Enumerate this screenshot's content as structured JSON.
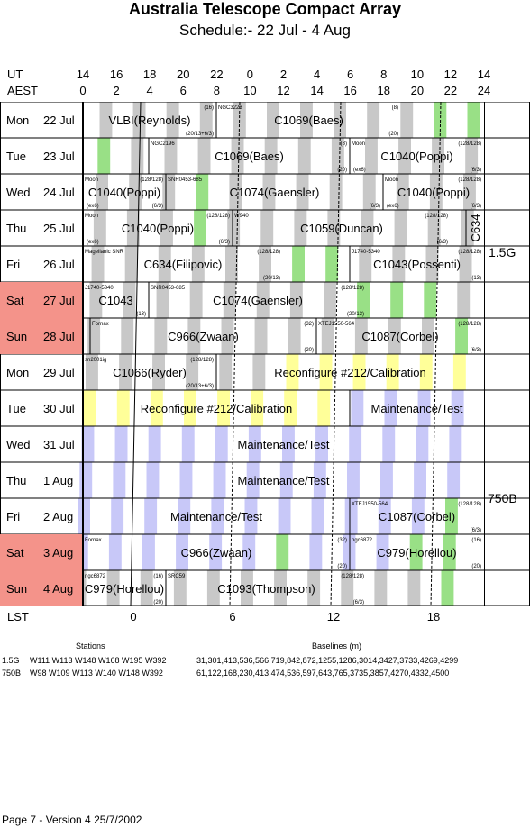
{
  "title": "Australia Telescope Compact Array",
  "subtitle": "Schedule:- 22 Jul - 4  Aug",
  "ut_label": "UT",
  "aest_label": "AEST",
  "lst_label": "LST",
  "ut_ticks": [
    "14",
    "16",
    "18",
    "20",
    "22",
    "0",
    "2",
    "4",
    "6",
    "8",
    "10",
    "12",
    "14"
  ],
  "aest_ticks": [
    "0",
    "2",
    "4",
    "6",
    "8",
    "10",
    "12",
    "14",
    "16",
    "18",
    "20",
    "22",
    "24"
  ],
  "lst_ticks": [
    "0",
    "6",
    "12",
    "18"
  ],
  "days": [
    {
      "name": "Mon",
      "date": "22 Jul",
      "weekend": false
    },
    {
      "name": "Tue",
      "date": "23 Jul",
      "weekend": false
    },
    {
      "name": "Wed",
      "date": "24 Jul",
      "weekend": false
    },
    {
      "name": "Thu",
      "date": "25 Jul",
      "weekend": false
    },
    {
      "name": "Fri",
      "date": "26 Jul",
      "weekend": false
    },
    {
      "name": "Sat",
      "date": "27 Jul",
      "weekend": true
    },
    {
      "name": "Sun",
      "date": "28 Jul",
      "weekend": true
    },
    {
      "name": "Mon",
      "date": "29 Jul",
      "weekend": false
    },
    {
      "name": "Tue",
      "date": "30 Jul",
      "weekend": false
    },
    {
      "name": "Wed",
      "date": "31 Jul",
      "weekend": false
    },
    {
      "name": "Thu",
      "date": "1  Aug",
      "weekend": false
    },
    {
      "name": "Fri",
      "date": "2  Aug",
      "weekend": false
    },
    {
      "name": "Sat",
      "date": "3  Aug",
      "weekend": true
    },
    {
      "name": "Sun",
      "date": "4  Aug",
      "weekend": true
    }
  ],
  "configs": [
    {
      "label": "1.5G"
    },
    {
      "label": "750B"
    }
  ],
  "colors": {
    "weekend": "#f4938a",
    "grey": "#c8c8c8",
    "green": "#99e086",
    "yellow": "#ffff99",
    "lavender": "#c8c8f8"
  },
  "blocks": [
    {
      "row": 0,
      "start": 92,
      "end": 240,
      "label": "VLBI(Reynolds)",
      "top": "",
      "tr": "(16)",
      "br": "(20/13+6/3)"
    },
    {
      "row": 0,
      "start": 240,
      "end": 445,
      "label": "C1069(Baes)",
      "top": "NGC3223",
      "tr": "(8)",
      "br": "(20)"
    },
    {
      "row": 1,
      "start": 165,
      "end": 388,
      "label": "C1069(Baes)",
      "top": "NGC2196",
      "tr": "(8)",
      "br": "(20)"
    },
    {
      "row": 1,
      "start": 388,
      "end": 537,
      "label": "C1040(Poppi)",
      "top": "Moon",
      "tr": "(128/128)",
      "br": "(6/3)",
      "bl": "(ex6)"
    },
    {
      "row": 2,
      "start": 92,
      "end": 184,
      "label": "C1040(Poppi)",
      "top": "Moon",
      "tr": "(128/128)",
      "br": "(6/3)",
      "bl": "(ex6)"
    },
    {
      "row": 2,
      "start": 184,
      "end": 425,
      "label": "C1074(Gaensler)",
      "top": "SNR0453-685",
      "tr": "",
      "br": "(6/3)"
    },
    {
      "row": 2,
      "start": 425,
      "end": 537,
      "label": "C1040(Poppi)",
      "top": "Moon",
      "tr": "(128/128)",
      "br": "(6/3)",
      "bl": "(ex6)"
    },
    {
      "row": 3,
      "start": 92,
      "end": 258,
      "label": "C1040(Poppi)",
      "top": "Moon",
      "tr": "(128/128)",
      "br": "(6/3)",
      "bl": "(ex6)"
    },
    {
      "row": 3,
      "start": 258,
      "end": 500,
      "label": "C1059(Duncan)",
      "top": "W940",
      "tr": "(128/128)",
      "br": "(6/3)"
    },
    {
      "row": 3,
      "start": 517,
      "end": 537,
      "label": "C634",
      "top": "",
      "tr": "",
      "br": "",
      "vertical": true
    },
    {
      "row": 4,
      "start": 92,
      "end": 314,
      "label": "C634(Filipovic)",
      "top": "Magellanic SNR",
      "tr": "(128/128)",
      "br": "(20/13)"
    },
    {
      "row": 4,
      "start": 388,
      "end": 537,
      "label": "C1043(Possenti)",
      "top": "J1740-5340",
      "tr": "(128/128)",
      "br": "(13)"
    },
    {
      "row": 5,
      "start": 92,
      "end": 165,
      "label": "C1043",
      "top": "J1740-5340",
      "tr": "",
      "br": "(13)"
    },
    {
      "row": 5,
      "start": 165,
      "end": 407,
      "label": "C1074(Gaensler)",
      "top": "SNR0453-685",
      "tr": "(128/128)",
      "br": "(20/13)"
    },
    {
      "row": 6,
      "start": 100,
      "end": 351,
      "label": "C966(Zwaan)",
      "top": "Fornax",
      "tr": "(32)",
      "br": "(20)"
    },
    {
      "row": 6,
      "start": 351,
      "end": 537,
      "label": "C1087(Corbel)",
      "top": "XTEJ1550-564",
      "tr": "(128/128)",
      "br": "(6/3)"
    },
    {
      "row": 7,
      "start": 92,
      "end": 240,
      "label": "C1066(Ryder)",
      "top": "sn2001ig",
      "tr": "(128/128)",
      "br": "(20/13+6/3)"
    },
    {
      "row": 7,
      "start": 240,
      "end": 537,
      "label": "Reconfigure #212/Calibration",
      "top": "",
      "tr": "",
      "br": ""
    },
    {
      "row": 8,
      "start": 92,
      "end": 388,
      "label": "Reconfigure #212/Calibration",
      "top": "",
      "tr": "",
      "br": ""
    },
    {
      "row": 8,
      "start": 388,
      "end": 537,
      "label": "Maintenance/Test",
      "top": "",
      "tr": "",
      "br": ""
    },
    {
      "row": 9,
      "start": 92,
      "end": 537,
      "label": "Maintenance/Test",
      "top": "",
      "tr": "",
      "br": ""
    },
    {
      "row": 10,
      "start": 92,
      "end": 537,
      "label": "Maintenance/Test",
      "top": "",
      "tr": "",
      "br": ""
    },
    {
      "row": 11,
      "start": 92,
      "end": 388,
      "label": "Maintenance/Test",
      "top": "",
      "tr": "",
      "br": ""
    },
    {
      "row": 11,
      "start": 388,
      "end": 537,
      "label": "C1087(Corbel)",
      "top": "XTEJ1550-564",
      "tr": "(128/128)",
      "br": "(6/3)"
    },
    {
      "row": 12,
      "start": 92,
      "end": 388,
      "label": "C966(Zwaan)",
      "top": "Fornax",
      "tr": "(32)",
      "br": "(20)"
    },
    {
      "row": 12,
      "start": 388,
      "end": 537,
      "label": "C979(Horellou)",
      "top": "ngc6872",
      "tr": "(16)",
      "br": "(20)"
    },
    {
      "row": 13,
      "start": 92,
      "end": 184,
      "label": "C979(Horellou)",
      "top": "ngc6872",
      "tr": "(16)",
      "br": "(20)"
    },
    {
      "row": 13,
      "start": 184,
      "end": 407,
      "label": "C1093(Thompson)",
      "top": "SRC59",
      "tr": "(128/128)",
      "br": "(6/3)"
    }
  ],
  "stations_header": "Stations",
  "baselines_header": "Baselines (m)",
  "config_rows": [
    {
      "name": "1.5G",
      "stations": "W111 W113 W148 W168 W195 W392",
      "baselines": "31,301,413,536,566,719,842,872,1255,1286,3014,3427,3733,4269,4299"
    },
    {
      "name": "750B",
      "stations": "W98 W109 W113 W140 W148 W392",
      "baselines": "61,122,168,230,413,474,536,597,643,765,3735,3857,4270,4332,4500"
    }
  ],
  "footer": "Page 7 - Version 4  25/7/2002"
}
